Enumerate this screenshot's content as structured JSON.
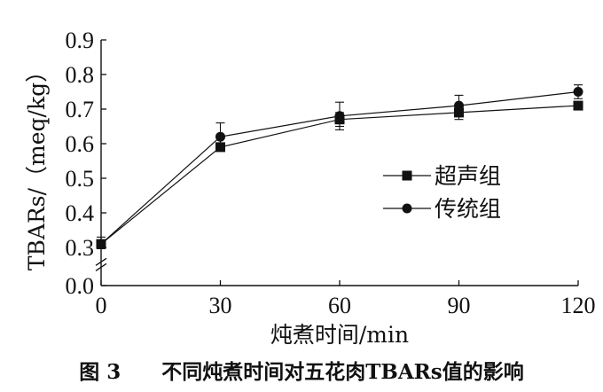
{
  "chart_data": {
    "type": "line",
    "x": [
      0,
      30,
      60,
      90,
      120
    ],
    "xticks": [
      "0",
      "30",
      "60",
      "90",
      "120"
    ],
    "yticks": [
      "0.0",
      "0.3",
      "0.4",
      "0.5",
      "0.6",
      "0.7",
      "0.8",
      "0.9"
    ],
    "xlabel": "炖煮时间/min",
    "ylabel": "TBARs/（meq/kg）",
    "xlim": [
      0,
      120
    ],
    "ylim": [
      0.0,
      0.9
    ],
    "y_axis_break": [
      0.0,
      0.3
    ],
    "grid": false,
    "legend_position": "center-right",
    "series": [
      {
        "name": "超声组",
        "marker": "square",
        "values": [
          0.31,
          0.59,
          0.67,
          0.69,
          0.71
        ],
        "errors": [
          0.01,
          0.01,
          0.02,
          0.02,
          0.01
        ]
      },
      {
        "name": "传统组",
        "marker": "circle",
        "values": [
          0.31,
          0.62,
          0.68,
          0.71,
          0.75
        ],
        "errors": [
          0.02,
          0.04,
          0.04,
          0.03,
          0.02
        ]
      }
    ]
  },
  "caption": "图 3　　不同炖煮时间对五花肉TBARs值的影响",
  "colors": {
    "ink": "#111111",
    "background": "#ffffff"
  }
}
